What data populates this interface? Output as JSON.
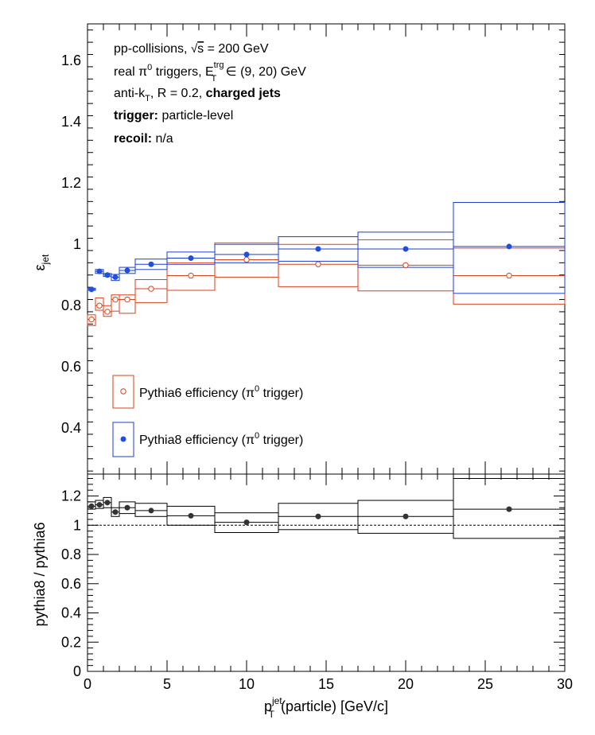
{
  "colors": {
    "pythia6": "#d9411a",
    "pythia8": "#1a3fd0",
    "pythia8_marker": "#1f4fe0",
    "ratio": "#000000"
  },
  "header": {
    "line1_a": "pp-collisions, ",
    "line1_sqrt": "√",
    "line1_s": "s",
    "line1_b": " = 200 GeV",
    "line2_a": "real π",
    "line2_sup0": "0",
    "line2_b": " triggers, E",
    "line2_sup": "trg",
    "line2_sub": "T",
    "line2_c": " ∈ (9, 20) GeV",
    "line3_a": "anti-k",
    "line3_sub": "T",
    "line3_b": ", R = 0.2, ",
    "line3_bold": "charged jets",
    "line4_bold": "trigger:",
    "line4_text": " particle-level",
    "line5_bold": "recoil:",
    "line5_text": " n/a"
  },
  "legend": {
    "entry1_a": "Pythia6 efficiency (π",
    "entry1_sup": "0",
    "entry1_b": " trigger)",
    "entry2_a": "Pythia8 efficiency (π",
    "entry2_sup": "0",
    "entry2_b": " trigger)"
  },
  "labels": {
    "top_ylabel_main": "ε",
    "top_ylabel_sub": "jet",
    "bottom_ylabel": "pythia8 / pythia6",
    "xlabel_p": "p",
    "xlabel_sup": "jet",
    "xlabel_sub": "T",
    "xlabel_rest": "(particle) [GeV/c]"
  },
  "chart_data": [
    {
      "type": "scatter",
      "panel": "top",
      "xlim": [
        0,
        30
      ],
      "ylim": [
        0.25,
        1.72
      ],
      "yticks": [
        0.4,
        0.6,
        0.8,
        1.0,
        1.2,
        1.4,
        1.6
      ],
      "ytick_labels": [
        "0.4",
        "0.6",
        "0.8",
        "1",
        "1.2",
        "1.4",
        "1.6"
      ],
      "series": [
        {
          "name": "Pythia6 efficiency (π0 trigger)",
          "marker": "open-circle",
          "x": [
            0.25,
            0.75,
            1.25,
            1.75,
            2.5,
            4.0,
            6.5,
            10.0,
            14.5,
            20.0,
            26.5
          ],
          "y": [
            0.755,
            0.8,
            0.78,
            0.82,
            0.82,
            0.855,
            0.898,
            0.95,
            0.935,
            0.932,
            0.898
          ],
          "xlow": [
            0.0,
            0.5,
            1.0,
            1.5,
            2.0,
            3.0,
            5.0,
            8.0,
            12.0,
            17.0,
            23.0
          ],
          "xhigh": [
            0.5,
            1.0,
            1.5,
            2.0,
            3.0,
            5.0,
            8.0,
            12.0,
            17.0,
            23.0,
            30.0
          ],
          "sys_low": [
            0.735,
            0.785,
            0.765,
            0.782,
            0.775,
            0.81,
            0.85,
            0.893,
            0.862,
            0.848,
            0.805
          ],
          "sys_high": [
            0.77,
            0.825,
            0.8,
            0.835,
            0.835,
            0.885,
            0.94,
            1.005,
            1.0,
            1.015,
            0.988
          ]
        },
        {
          "name": "Pythia8 efficiency (π0 trigger)",
          "marker": "filled-circle",
          "x": [
            0.25,
            0.75,
            1.25,
            1.75,
            2.5,
            4.0,
            6.5,
            10.0,
            14.5,
            20.0,
            26.5
          ],
          "y": [
            0.853,
            0.912,
            0.9,
            0.893,
            0.915,
            0.935,
            0.955,
            0.967,
            0.985,
            0.985,
            0.993
          ],
          "xlow": [
            0.0,
            0.5,
            1.0,
            1.5,
            2.0,
            3.0,
            5.0,
            8.0,
            12.0,
            17.0,
            23.0
          ],
          "xhigh": [
            0.5,
            1.0,
            1.5,
            2.0,
            3.0,
            5.0,
            8.0,
            12.0,
            17.0,
            23.0,
            30.0
          ],
          "sys_low": [
            0.85,
            0.905,
            0.895,
            0.882,
            0.905,
            0.918,
            0.935,
            0.94,
            0.945,
            0.925,
            0.84
          ],
          "sys_high": [
            0.857,
            0.918,
            0.905,
            0.902,
            0.925,
            0.952,
            0.975,
            1.0,
            1.025,
            1.04,
            1.137
          ]
        }
      ]
    },
    {
      "type": "scatter",
      "panel": "bottom",
      "xlim": [
        0,
        30
      ],
      "ylim": [
        0,
        1.35
      ],
      "xticks": [
        0,
        5,
        10,
        15,
        20,
        25,
        30
      ],
      "xtick_labels": [
        "0",
        "5",
        "10",
        "15",
        "20",
        "25",
        "30"
      ],
      "yticks": [
        0,
        0.2,
        0.4,
        0.6,
        0.8,
        1.0,
        1.2
      ],
      "ytick_labels": [
        "0",
        "0.2",
        "0.4",
        "0.6",
        "0.8",
        "1",
        "1.2"
      ],
      "reference_line": 1.0,
      "series": [
        {
          "name": "pythia8 / pythia6",
          "marker": "filled-circle",
          "x": [
            0.25,
            0.75,
            1.25,
            1.75,
            2.5,
            4.0,
            6.5,
            10.0,
            14.5,
            20.0,
            26.5
          ],
          "y": [
            1.13,
            1.14,
            1.155,
            1.09,
            1.12,
            1.1,
            1.065,
            1.02,
            1.06,
            1.06,
            1.11
          ],
          "xlow": [
            0.0,
            0.5,
            1.0,
            1.5,
            2.0,
            3.0,
            5.0,
            8.0,
            12.0,
            17.0,
            23.0
          ],
          "xhigh": [
            0.5,
            1.0,
            1.5,
            2.0,
            3.0,
            5.0,
            8.0,
            12.0,
            17.0,
            23.0,
            30.0
          ],
          "sys_low": [
            1.11,
            1.115,
            1.12,
            1.06,
            1.08,
            1.06,
            1.0,
            0.95,
            0.97,
            0.945,
            0.91
          ],
          "sys_high": [
            1.16,
            1.17,
            1.19,
            1.12,
            1.16,
            1.15,
            1.13,
            1.085,
            1.15,
            1.17,
            1.32
          ]
        }
      ]
    }
  ]
}
